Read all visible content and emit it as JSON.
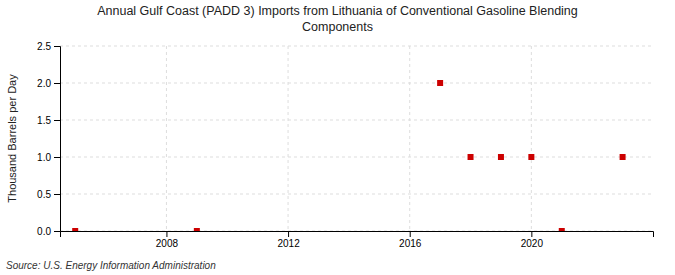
{
  "chart_data": {
    "type": "scatter",
    "title": "Annual Gulf Coast (PADD 3) Imports from Lithuania of Conventional Gasoline Blending\nComponents",
    "y_label": "Thousand Barrels per Day",
    "annotations": [
      "Source: U.S. Energy Information Administration"
    ],
    "x": [
      2005,
      2009,
      2017,
      2018,
      2019,
      2020,
      2021,
      2023
    ],
    "values": [
      0.0,
      0.0,
      2.0,
      1.0,
      1.0,
      1.0,
      0.0,
      1.0
    ],
    "color": "#cc0000",
    "marker": "square",
    "xlim": [
      2004.5,
      2024
    ],
    "ylim": [
      0.0,
      2.5
    ],
    "xticks": [
      2008,
      2012,
      2016,
      2020
    ],
    "yticks": [
      {
        "value": 0.0,
        "label": "0.0"
      },
      0.5,
      {
        "value": 1.0,
        "label": "1.0"
      },
      1.5,
      {
        "value": 2.0,
        "label": "2.0"
      },
      2.5
    ],
    "grid": true
  }
}
